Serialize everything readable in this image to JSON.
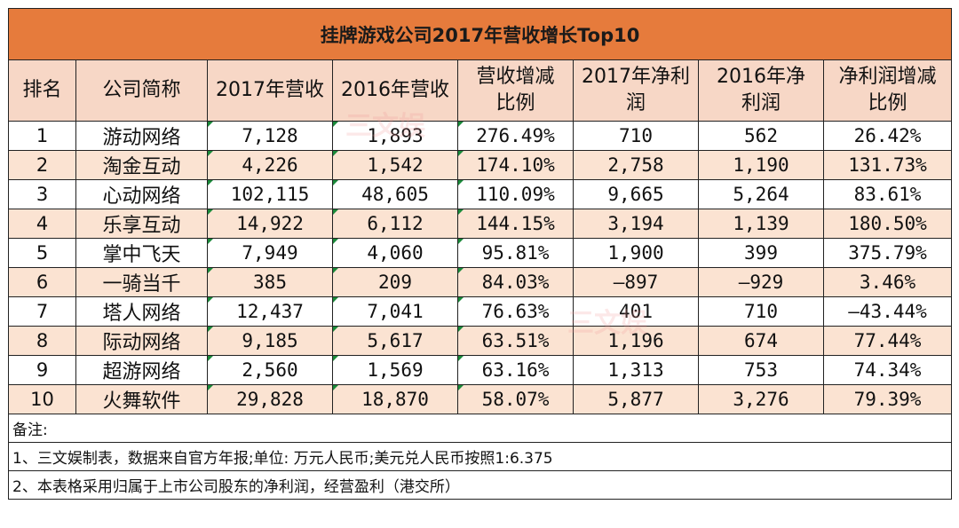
{
  "title": "挂牌游戏公司2017年营收增长Top10",
  "headers": {
    "rank": "排名",
    "name": "公司简称",
    "rev2017": "2017年营收",
    "rev2016": "2016年营收",
    "rev_change_l1": "营收增减",
    "rev_change_l2": "比例",
    "np2017_l1": "2017年净利",
    "np2017_l2": "润",
    "np2016_l1": "2016年净",
    "np2016_l2": "利润",
    "np_change_l1": "净利润增减",
    "np_change_l2": "比例"
  },
  "rows": [
    {
      "rank": "1",
      "name": "游动网络",
      "rev2017": "7,128",
      "rev2016": "1,893",
      "rev_change": "276.49%",
      "np2017": "710",
      "np2016": "562",
      "np_change": "26.42%"
    },
    {
      "rank": "2",
      "name": "淘金互动",
      "rev2017": "4,226",
      "rev2016": "1,542",
      "rev_change": "174.10%",
      "np2017": "2,758",
      "np2016": "1,190",
      "np_change": "131.73%"
    },
    {
      "rank": "3",
      "name": "心动网络",
      "rev2017": "102,115",
      "rev2016": "48,605",
      "rev_change": "110.09%",
      "np2017": "9,665",
      "np2016": "5,264",
      "np_change": "83.61%"
    },
    {
      "rank": "4",
      "name": "乐享互动",
      "rev2017": "14,922",
      "rev2016": "6,112",
      "rev_change": "144.15%",
      "np2017": "3,194",
      "np2016": "1,139",
      "np_change": "180.50%"
    },
    {
      "rank": "5",
      "name": "掌中飞天",
      "rev2017": "7,949",
      "rev2016": "4,060",
      "rev_change": "95.81%",
      "np2017": "1,900",
      "np2016": "399",
      "np_change": "375.79%"
    },
    {
      "rank": "6",
      "name": "一骑当千",
      "rev2017": "385",
      "rev2016": "209",
      "rev_change": "84.03%",
      "np2017": "—897",
      "np2016": "—929",
      "np_change": "3.46%"
    },
    {
      "rank": "7",
      "name": "塔人网络",
      "rev2017": "12,437",
      "rev2016": "7,041",
      "rev_change": "76.63%",
      "np2017": "401",
      "np2016": "710",
      "np_change": "—43.44%"
    },
    {
      "rank": "8",
      "name": "际动网络",
      "rev2017": "9,185",
      "rev2016": "5,617",
      "rev_change": "63.51%",
      "np2017": "1,196",
      "np2016": "674",
      "np_change": "77.44%"
    },
    {
      "rank": "9",
      "name": "超游网络",
      "rev2017": "2,560",
      "rev2016": "1,569",
      "rev_change": "63.16%",
      "np2017": "1,313",
      "np2016": "753",
      "np_change": "74.34%"
    },
    {
      "rank": "10",
      "name": "火舞软件",
      "rev2017": "29,828",
      "rev2016": "18,870",
      "rev_change": "58.07%",
      "np2017": "5,877",
      "np2016": "3,276",
      "np_change": "79.39%"
    }
  ],
  "notes": {
    "label": "备注:",
    "line1": "1、三文娱制表，数据来自官方年报;单位: 万元人民币;美元兑人民币按照1:6.375",
    "line2": "2、本表格采用归属于上市公司股东的净利润，经营盈利（港交所）"
  },
  "watermark": "三文娱",
  "colors": {
    "title_bg": "#e67b3c",
    "header_bg": "#f7d7c6",
    "shade_bg": "#fbe3d2",
    "marker": "#1a8a3a"
  }
}
